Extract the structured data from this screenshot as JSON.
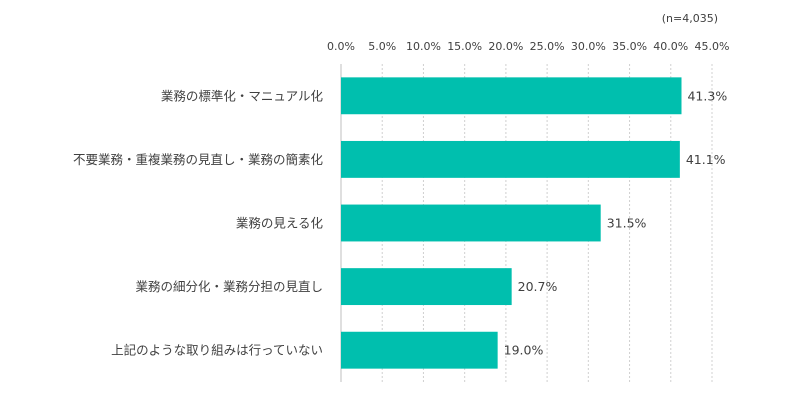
{
  "chart_data": {
    "type": "bar",
    "orientation": "horizontal",
    "note": "(n=4,035)",
    "categories": [
      "業務の標準化・マニュアル化",
      "不要業務・重複業務の見直し・業務の簡素化",
      "業務の見える化",
      "業務の細分化・業務分担の見直し",
      "上記のような取り組みは行っていない"
    ],
    "values": [
      41.3,
      41.1,
      31.5,
      20.7,
      19.0
    ],
    "value_labels": [
      "41.3%",
      "41.1%",
      "31.5%",
      "20.7%",
      "19.0%"
    ],
    "xlim": [
      0,
      45
    ],
    "x_ticks": [
      "0.0%",
      "5.0%",
      "10.0%",
      "15.0%",
      "20.0%",
      "25.0%",
      "30.0%",
      "35.0%",
      "40.0%",
      "45.0%"
    ],
    "grid": true,
    "axis_position": "top",
    "bar_color": "#00BFAE"
  }
}
